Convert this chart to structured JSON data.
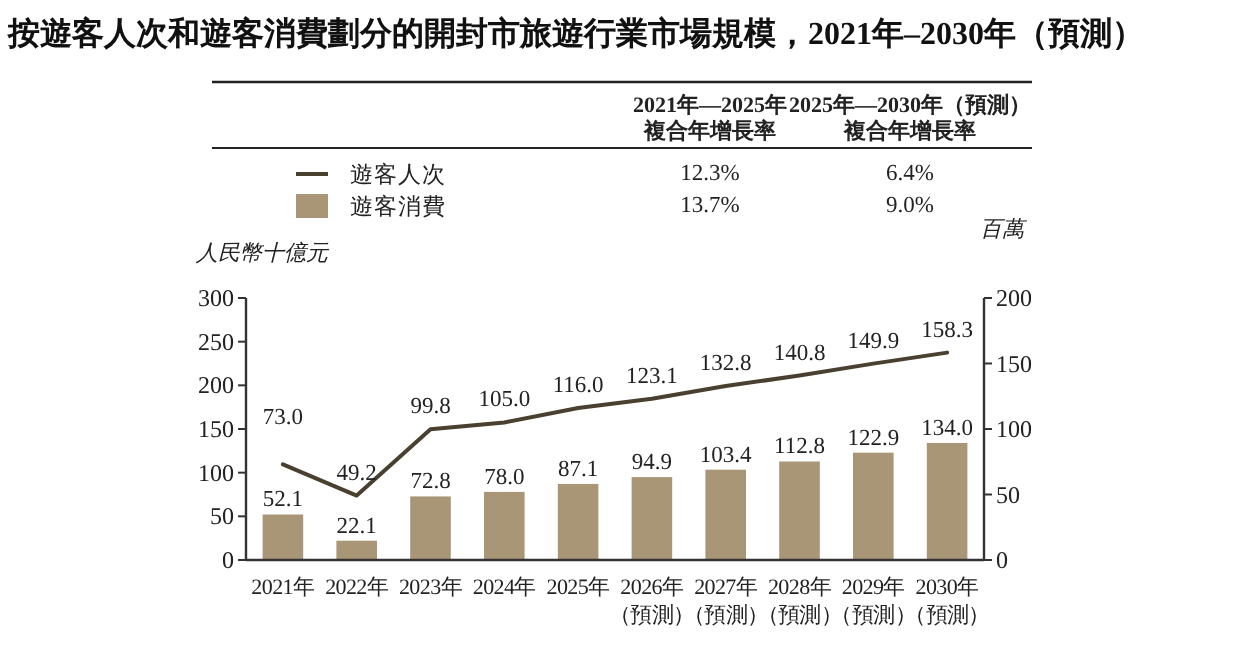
{
  "chart_data": {
    "type": "bar",
    "title": "按遊客人次和遊客消費劃分的開封市旅遊行業市場規模，2021年–2030年（預測）",
    "ylabel": "人民幣十億元",
    "y2label": "百萬",
    "categories": [
      "2021年",
      "2022年",
      "2023年",
      "2024年",
      "2025年",
      "2026年（預測）",
      "2027年（預測）",
      "2028年（預測）",
      "2029年（預測）",
      "2030年（預測）"
    ],
    "series": [
      {
        "name": "遊客人次",
        "type": "line",
        "axis": "y2",
        "color": "#4a4030",
        "values": [
          73.0,
          49.2,
          99.8,
          105.0,
          116.0,
          123.1,
          132.8,
          140.8,
          149.9,
          158.3
        ],
        "value_labels": [
          "73.0",
          "49.2",
          "99.8",
          "105.0",
          "116.0",
          "123.1",
          "132.8",
          "140.8",
          "149.9",
          "158.3"
        ]
      },
      {
        "name": "遊客消費",
        "color": "#a89677",
        "values": [
          52.1,
          22.1,
          72.8,
          78.0,
          87.1,
          94.9,
          103.4,
          112.8,
          122.9,
          134.0
        ],
        "value_labels": [
          "52.1",
          "22.1",
          "72.8",
          "78.0",
          "87.1",
          "94.9",
          "103.4",
          "112.8",
          "122.9",
          "134.0"
        ]
      }
    ],
    "ylim": [
      0,
      300
    ],
    "yticks": [
      0,
      50,
      100,
      150,
      200,
      250,
      300
    ],
    "y2lim": [
      0,
      200
    ],
    "y2ticks": [
      0,
      50,
      100,
      150,
      200
    ],
    "legend": "top",
    "grid": false,
    "annotations": [
      "2021年—2025年",
      "2025年—2030年（預測）",
      "複合年增長率",
      "複合年增長率",
      "12.3%",
      "6.4%",
      "13.7%",
      "9.0%"
    ]
  }
}
